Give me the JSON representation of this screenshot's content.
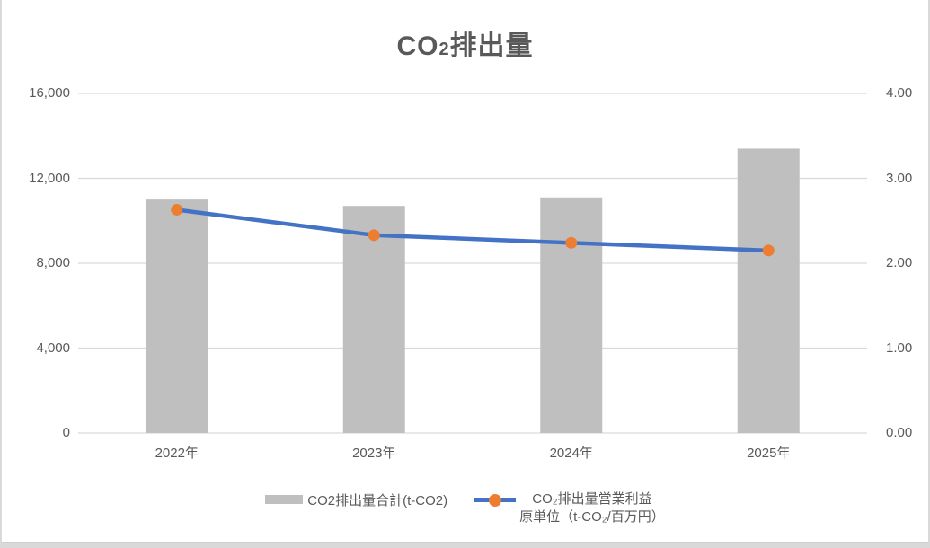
{
  "title": {
    "pre": "CO",
    "sub": "2",
    "post": "排出量"
  },
  "chart_data": {
    "type": "combo-bar-line",
    "title": "CO2排出量",
    "categories": [
      "2022年",
      "2023年",
      "2024年",
      "2025年"
    ],
    "series": [
      {
        "name": "CO2排出量合計(t-CO2)",
        "type": "bar",
        "axis": "left",
        "color": "#BFBFBF",
        "values": [
          11000,
          10700,
          11100,
          13400
        ]
      },
      {
        "name": "CO₂排出量営業利益原単位（t-CO₂/百万円）",
        "type": "line",
        "axis": "right",
        "color": "#4472C4",
        "marker": "circle",
        "marker_color": "#ED7D31",
        "values": [
          2.63,
          2.33,
          2.24,
          2.15
        ]
      }
    ],
    "left_axis": {
      "min": 0,
      "max": 16000,
      "ticks": [
        "16,000",
        "12,000",
        "8,000",
        "4,000",
        "0"
      ]
    },
    "right_axis": {
      "min": 0,
      "max": 4,
      "ticks": [
        "4.00",
        "3.00",
        "2.00",
        "1.00",
        "0.00"
      ]
    },
    "gridlines": {
      "show": true,
      "color": "#D9D9D9"
    },
    "legend": {
      "position": "bottom",
      "items": [
        {
          "label": "CO2排出量合計(t-CO2)"
        },
        {
          "line1": "CO₂排出量営業利益",
          "line2": "原単位（t-CO₂/百万円）"
        }
      ]
    },
    "text_color": "#595959",
    "background": "#FFFFFF"
  }
}
